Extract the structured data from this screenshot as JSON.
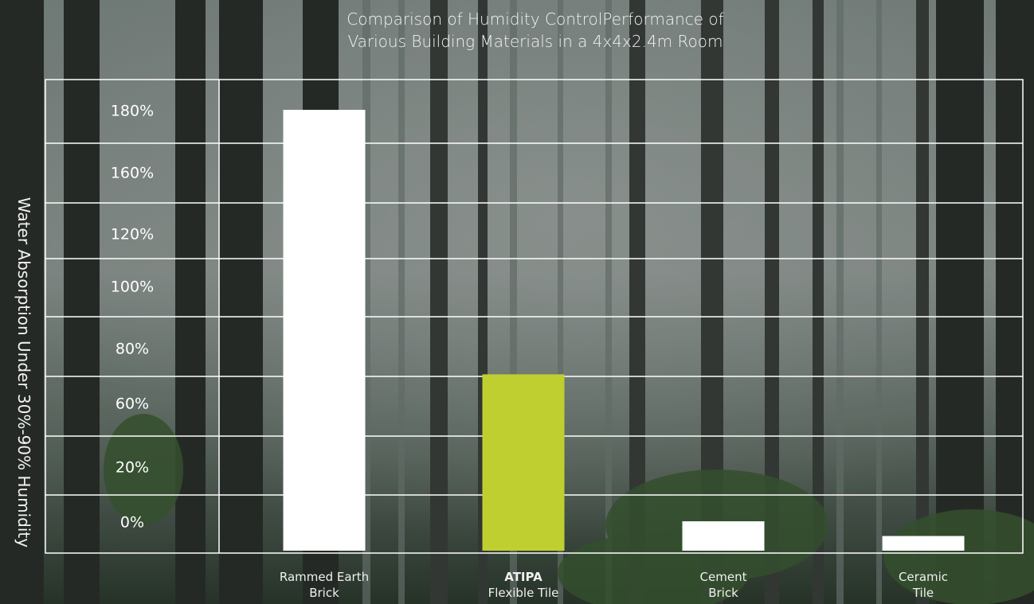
{
  "chart_data": {
    "type": "bar",
    "title_lines": [
      "Comparison of Humidity ControlPerformance of",
      "Various Building Materials in a 4x4x2.4m Room"
    ],
    "ylabel": "Water Absorption Under 30%-90% Humidity",
    "yticks": [
      "180%",
      "160%",
      "120%",
      "100%",
      "80%",
      "60%",
      "20%",
      "0%"
    ],
    "categories": [
      {
        "line1": "Rammed Earth",
        "line2": "Brick",
        "bold": false
      },
      {
        "line1": "ATIPA",
        "line2": "Flexible Tile",
        "bold": true
      },
      {
        "line1": "Cement",
        "line2": "Brick",
        "bold": false
      },
      {
        "line1": "Ceramic",
        "line2": "Tile",
        "bold": false
      }
    ],
    "values": [
      180,
      72,
      12,
      6
    ],
    "bar_colors": [
      "#ffffff",
      "#c0cf30",
      "#ffffff",
      "#ffffff"
    ],
    "grid": true
  }
}
